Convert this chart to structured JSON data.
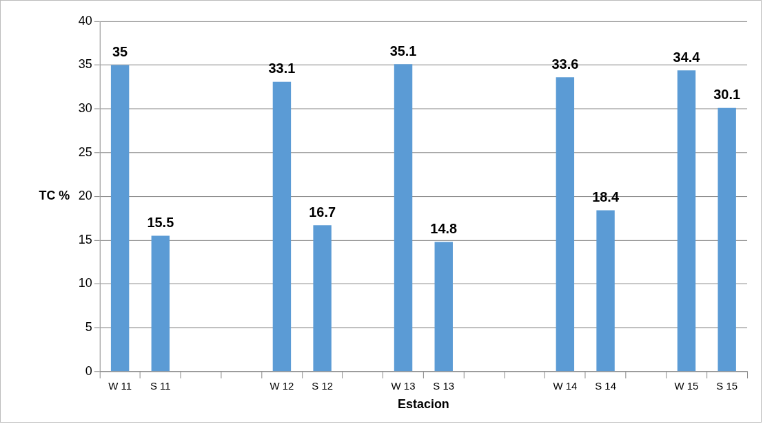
{
  "chart_data": {
    "type": "bar",
    "xlabel": "Estacion",
    "ylabel": "TC %",
    "categories": [
      "W 11",
      "S 11",
      null,
      null,
      "W 12",
      "S 12",
      null,
      "W 13",
      "S 13",
      null,
      null,
      "W 14",
      "S 14",
      null,
      "W 15",
      "S 15"
    ],
    "values": [
      35,
      15.5,
      null,
      null,
      33.1,
      16.7,
      null,
      35.1,
      14.8,
      null,
      null,
      33.6,
      18.4,
      null,
      34.4,
      30.1
    ],
    "color": "#5b9bd5",
    "ylim": [
      0,
      40
    ],
    "yticks": [
      0,
      5,
      10,
      15,
      20,
      25,
      30,
      35,
      40
    ],
    "grid": "y",
    "data_labels": true,
    "legend": false
  }
}
